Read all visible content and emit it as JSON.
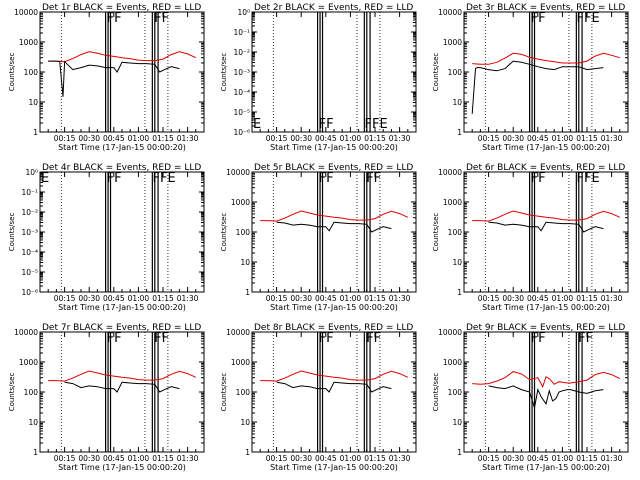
{
  "figure": {
    "x_axis_label": "Start Time (17-Jan-15 00:00:20)",
    "y_axis_label": "Counts/sec",
    "x_ticks": [
      "00:15",
      "00:30",
      "00:45",
      "01:00",
      "01:15",
      "01:30"
    ],
    "legend_text": "BLACK = Events, RED = LLD",
    "colors": {
      "events": "#000000",
      "lld": "#e00000",
      "axis": "#000000"
    }
  },
  "chart_data": [
    {
      "type": "line",
      "title": "Det 1r  BLACK = Events, RED = LLD",
      "xlabel": "Start Time (17-Jan-15 00:00:20)",
      "ylabel": "Counts/sec",
      "xlim_minutes": [
        0,
        100
      ],
      "yscale": "log",
      "ylim": [
        1,
        10000
      ],
      "ytick_labels": [
        "1",
        "10",
        "100",
        "1000",
        "10000"
      ],
      "has_data": true,
      "vertical_markers_min": [
        40,
        41.5,
        43,
        68.5,
        70,
        72
      ],
      "dotted_markers_min": [
        13,
        64,
        78
      ],
      "flags": [
        {
          "text": "FF",
          "at_min": 40
        },
        {
          "text": "FF",
          "at_min": 69
        }
      ],
      "series": [
        {
          "name": "LLD",
          "color": "red",
          "x": [
            5,
            10,
            15,
            20,
            25,
            30,
            35,
            40,
            45,
            50,
            55,
            60,
            65,
            70,
            75,
            80,
            85,
            90,
            95
          ],
          "y": [
            230,
            230,
            220,
            280,
            380,
            480,
            420,
            360,
            330,
            300,
            280,
            250,
            240,
            240,
            270,
            380,
            480,
            400,
            300
          ]
        },
        {
          "name": "Events",
          "color": "black",
          "x": [
            5,
            10,
            12,
            14,
            15,
            20,
            25,
            30,
            35,
            40,
            45,
            47,
            50,
            55,
            60,
            65,
            70,
            73,
            76,
            80,
            85
          ],
          "y": [
            230,
            230,
            225,
            15,
            220,
            120,
            140,
            170,
            160,
            140,
            140,
            100,
            210,
            200,
            190,
            190,
            180,
            100,
            120,
            150,
            130
          ]
        }
      ]
    },
    {
      "type": "line",
      "title": "Det 2r  BLACK = Events, RED = LLD",
      "xlabel": "Start Time (17-Jan-15 00:00:20)",
      "ylabel": "Counts/sec",
      "xlim_minutes": [
        0,
        100
      ],
      "yscale": "log",
      "ylim": [
        1e-06,
        1
      ],
      "ytick_labels": [
        "10⁻⁶",
        "10⁻⁵",
        "10⁻⁴",
        "10⁻³",
        "10⁻²",
        "10⁻¹",
        "10⁰"
      ],
      "has_data": false,
      "vertical_markers_min": [
        40,
        41.5,
        43,
        68.5,
        70,
        72
      ],
      "dotted_markers_min": [
        13,
        64,
        78
      ],
      "flags": [
        {
          "text": "E",
          "at_min": 0
        },
        {
          "text": "FF",
          "at_min": 40
        },
        {
          "text": "FFE",
          "at_min": 68
        }
      ],
      "series": []
    },
    {
      "type": "line",
      "title": "Det 3r  BLACK = Events, RED = LLD",
      "xlabel": "Start Time (17-Jan-15 00:00:20)",
      "ylabel": "Counts/sec",
      "xlim_minutes": [
        0,
        100
      ],
      "yscale": "log",
      "ylim": [
        1,
        10000
      ],
      "ytick_labels": [
        "1",
        "10",
        "100",
        "1000",
        "10000"
      ],
      "has_data": true,
      "vertical_markers_min": [
        40,
        41.5,
        43,
        68.5,
        70,
        72
      ],
      "dotted_markers_min": [
        13,
        64,
        78
      ],
      "flags": [
        {
          "text": "FF",
          "at_min": 40
        },
        {
          "text": "FFE",
          "at_min": 68
        }
      ],
      "series": [
        {
          "name": "LLD",
          "color": "red",
          "x": [
            5,
            10,
            15,
            20,
            25,
            30,
            35,
            40,
            45,
            50,
            55,
            60,
            65,
            70,
            75,
            80,
            85,
            90,
            95
          ],
          "y": [
            190,
            180,
            180,
            210,
            290,
            420,
            390,
            310,
            270,
            240,
            220,
            200,
            200,
            200,
            230,
            340,
            420,
            360,
            300
          ]
        },
        {
          "name": "Events",
          "color": "black",
          "x": [
            5,
            7,
            8,
            10,
            15,
            20,
            25,
            30,
            35,
            40,
            45,
            50,
            55,
            60,
            65,
            70,
            75,
            80,
            85
          ],
          "y": [
            4,
            130,
            140,
            140,
            120,
            110,
            130,
            230,
            210,
            180,
            150,
            130,
            120,
            150,
            150,
            150,
            120,
            130,
            140
          ]
        }
      ]
    },
    {
      "type": "line",
      "title": "Det 4r  BLACK = Events, RED = LLD",
      "xlabel": "Start Time (17-Jan-15 00:00:20)",
      "ylabel": "Counts/sec",
      "xlim_minutes": [
        0,
        100
      ],
      "yscale": "log",
      "ylim": [
        1e-06,
        1
      ],
      "ytick_labels": [
        "10⁻⁶",
        "10⁻⁵",
        "10⁻⁴",
        "10⁻³",
        "10⁻²",
        "10⁻¹",
        "10⁰"
      ],
      "has_data": false,
      "vertical_markers_min": [
        40,
        41.5,
        43,
        68.5,
        70,
        72
      ],
      "dotted_markers_min": [
        13,
        64,
        78
      ],
      "flags": [
        {
          "text": "E",
          "at_min": 0
        },
        {
          "text": "FF",
          "at_min": 40
        },
        {
          "text": "FFE",
          "at_min": 68
        }
      ],
      "series": []
    },
    {
      "type": "line",
      "title": "Det 5r  BLACK = Events, RED = LLD",
      "xlabel": "Start Time (17-Jan-15 00:00:20)",
      "ylabel": "Counts/sec",
      "xlim_minutes": [
        0,
        100
      ],
      "yscale": "log",
      "ylim": [
        1,
        10000
      ],
      "ytick_labels": [
        "1",
        "10",
        "100",
        "1000",
        "10000"
      ],
      "has_data": true,
      "vertical_markers_min": [
        40,
        41.5,
        43,
        68.5,
        70,
        72
      ],
      "dotted_markers_min": [
        13,
        64,
        78
      ],
      "flags": [
        {
          "text": "FF",
          "at_min": 40
        },
        {
          "text": "FF",
          "at_min": 69
        }
      ],
      "series": [
        {
          "name": "LLD",
          "color": "red",
          "x": [
            5,
            10,
            15,
            20,
            25,
            30,
            35,
            40,
            45,
            50,
            55,
            60,
            65,
            70,
            75,
            80,
            85,
            90,
            95
          ],
          "y": [
            240,
            240,
            230,
            290,
            390,
            500,
            430,
            370,
            340,
            310,
            290,
            260,
            250,
            250,
            280,
            390,
            490,
            410,
            310
          ]
        },
        {
          "name": "Events",
          "color": "black",
          "x": [
            15,
            20,
            25,
            30,
            35,
            40,
            45,
            47,
            50,
            55,
            60,
            65,
            70,
            73,
            76,
            80,
            85
          ],
          "y": [
            210,
            200,
            170,
            180,
            170,
            150,
            150,
            110,
            210,
            200,
            190,
            190,
            180,
            100,
            120,
            150,
            130
          ]
        }
      ]
    },
    {
      "type": "line",
      "title": "Det 6r  BLACK = Events, RED = LLD",
      "xlabel": "Start Time (17-Jan-15 00:00:20)",
      "ylabel": "Counts/sec",
      "xlim_minutes": [
        0,
        100
      ],
      "yscale": "log",
      "ylim": [
        1,
        10000
      ],
      "ytick_labels": [
        "1",
        "10",
        "100",
        "1000",
        "10000"
      ],
      "has_data": true,
      "vertical_markers_min": [
        40,
        41.5,
        43,
        68.5,
        70,
        72
      ],
      "dotted_markers_min": [
        13,
        64,
        78
      ],
      "flags": [
        {
          "text": "FF",
          "at_min": 40
        },
        {
          "text": "FFE",
          "at_min": 68
        }
      ],
      "series": [
        {
          "name": "LLD",
          "color": "red",
          "x": [
            5,
            10,
            15,
            20,
            25,
            30,
            35,
            40,
            45,
            50,
            55,
            60,
            65,
            70,
            75,
            80,
            85,
            90,
            95
          ],
          "y": [
            240,
            240,
            230,
            290,
            390,
            500,
            430,
            370,
            340,
            310,
            290,
            260,
            250,
            250,
            280,
            390,
            490,
            410,
            310
          ]
        },
        {
          "name": "Events",
          "color": "black",
          "x": [
            15,
            20,
            25,
            30,
            35,
            40,
            45,
            47,
            50,
            55,
            60,
            65,
            70,
            73,
            76,
            80,
            85
          ],
          "y": [
            210,
            200,
            170,
            180,
            170,
            150,
            150,
            110,
            210,
            200,
            190,
            190,
            180,
            100,
            120,
            150,
            130
          ]
        }
      ]
    },
    {
      "type": "line",
      "title": "Det 7r  BLACK = Events, RED = LLD",
      "xlabel": "Start Time (17-Jan-15 00:00:20)",
      "ylabel": "Counts/sec",
      "xlim_minutes": [
        0,
        100
      ],
      "yscale": "log",
      "ylim": [
        1,
        10000
      ],
      "ytick_labels": [
        "1",
        "10",
        "100",
        "1000",
        "10000"
      ],
      "has_data": true,
      "vertical_markers_min": [
        40,
        41.5,
        43,
        68.5,
        70,
        72
      ],
      "dotted_markers_min": [
        13,
        64,
        78
      ],
      "flags": [
        {
          "text": "FF",
          "at_min": 40
        },
        {
          "text": "FF",
          "at_min": 69
        }
      ],
      "series": [
        {
          "name": "LLD",
          "color": "red",
          "x": [
            5,
            10,
            15,
            20,
            25,
            30,
            35,
            40,
            45,
            50,
            55,
            60,
            65,
            70,
            75,
            80,
            85,
            90,
            95
          ],
          "y": [
            240,
            240,
            230,
            290,
            390,
            500,
            430,
            370,
            340,
            310,
            290,
            260,
            250,
            250,
            280,
            390,
            490,
            410,
            310
          ]
        },
        {
          "name": "Events",
          "color": "black",
          "x": [
            15,
            20,
            25,
            30,
            35,
            40,
            45,
            47,
            50,
            55,
            60,
            65,
            70,
            73,
            76,
            80,
            85
          ],
          "y": [
            210,
            190,
            140,
            160,
            150,
            130,
            130,
            100,
            210,
            200,
            190,
            190,
            180,
            100,
            120,
            150,
            130
          ]
        }
      ]
    },
    {
      "type": "line",
      "title": "Det 8r  BLACK = Events, RED = LLD",
      "xlabel": "Start Time (17-Jan-15 00:00:20)",
      "ylabel": "Counts/sec",
      "xlim_minutes": [
        0,
        100
      ],
      "yscale": "log",
      "ylim": [
        1,
        10000
      ],
      "ytick_labels": [
        "1",
        "10",
        "100",
        "1000",
        "10000"
      ],
      "has_data": true,
      "vertical_markers_min": [
        40,
        41.5,
        43,
        68.5,
        70,
        72
      ],
      "dotted_markers_min": [
        13,
        64,
        78
      ],
      "flags": [
        {
          "text": "FF",
          "at_min": 40
        },
        {
          "text": "FF",
          "at_min": 69
        }
      ],
      "series": [
        {
          "name": "LLD",
          "color": "red",
          "x": [
            5,
            10,
            15,
            20,
            25,
            30,
            35,
            40,
            45,
            50,
            55,
            60,
            65,
            70,
            75,
            80,
            85,
            90,
            95
          ],
          "y": [
            240,
            240,
            230,
            290,
            390,
            500,
            430,
            370,
            340,
            310,
            290,
            260,
            250,
            250,
            280,
            390,
            490,
            410,
            310
          ]
        },
        {
          "name": "Events",
          "color": "black",
          "x": [
            15,
            20,
            25,
            30,
            35,
            40,
            45,
            47,
            50,
            55,
            60,
            65,
            70,
            73,
            76,
            80,
            85
          ],
          "y": [
            210,
            190,
            140,
            160,
            150,
            130,
            130,
            100,
            210,
            200,
            190,
            190,
            180,
            100,
            120,
            150,
            130
          ]
        }
      ]
    },
    {
      "type": "line",
      "title": "Det 9r  BLACK = Events, RED = LLD",
      "xlabel": "Start Time (17-Jan-15 00:00:20)",
      "ylabel": "Counts/sec",
      "xlim_minutes": [
        0,
        100
      ],
      "yscale": "log",
      "ylim": [
        1,
        10000
      ],
      "ytick_labels": [
        "1",
        "10",
        "100",
        "1000",
        "10000"
      ],
      "has_data": true,
      "vertical_markers_min": [
        40,
        41.5,
        43,
        68.5,
        70,
        72
      ],
      "dotted_markers_min": [
        13,
        64,
        78
      ],
      "flags": [
        {
          "text": "FF",
          "at_min": 40
        },
        {
          "text": "FF",
          "at_min": 69
        }
      ],
      "series": [
        {
          "name": "LLD",
          "color": "red",
          "x": [
            5,
            10,
            15,
            20,
            25,
            30,
            35,
            40,
            45,
            48,
            50,
            52,
            55,
            58,
            60,
            63,
            65,
            70,
            75,
            80,
            85,
            90,
            95
          ],
          "y": [
            190,
            180,
            190,
            230,
            300,
            480,
            400,
            260,
            300,
            150,
            320,
            280,
            180,
            220,
            210,
            200,
            200,
            220,
            250,
            380,
            450,
            380,
            280
          ]
        },
        {
          "name": "Events",
          "color": "black",
          "x": [
            15,
            20,
            25,
            30,
            35,
            40,
            43,
            45,
            47,
            50,
            52,
            54,
            56,
            58,
            60,
            63,
            65,
            70,
            75,
            80,
            85
          ],
          "y": [
            160,
            140,
            130,
            160,
            120,
            100,
            30,
            120,
            70,
            40,
            110,
            50,
            60,
            100,
            110,
            120,
            120,
            100,
            90,
            110,
            120
          ]
        }
      ]
    }
  ]
}
